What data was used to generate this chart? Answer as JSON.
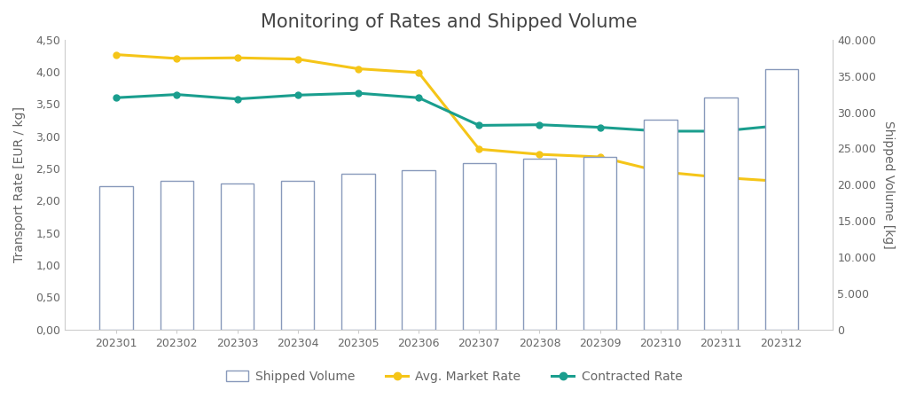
{
  "title": "Monitoring of Rates and Shipped Volume",
  "months": [
    "202301",
    "202302",
    "202303",
    "202304",
    "202305",
    "202306",
    "202307",
    "202308",
    "202309",
    "202310",
    "202311",
    "202312"
  ],
  "avg_market_rate": [
    4.27,
    4.21,
    4.22,
    4.2,
    4.05,
    3.99,
    2.8,
    2.72,
    2.68,
    2.45,
    2.36,
    2.3
  ],
  "contracted_rate": [
    3.6,
    3.65,
    3.58,
    3.64,
    3.67,
    3.6,
    3.17,
    3.18,
    3.14,
    3.08,
    3.08,
    3.17
  ],
  "shipped_volume": [
    19800,
    20500,
    20200,
    20500,
    21500,
    22000,
    23000,
    23600,
    23800,
    29000,
    32000,
    36000
  ],
  "bar_color": "#ffffff",
  "bar_edge_color": "#8899bb",
  "avg_market_color": "#F5C518",
  "contracted_color": "#1a9e8e",
  "ylabel_left": "Transport Rate [EUR / kg]",
  "ylabel_right": "Shipped Volume [kg]",
  "ylim_left": [
    0.0,
    4.5
  ],
  "ylim_right": [
    0,
    40000
  ],
  "yticks_left": [
    0.0,
    0.5,
    1.0,
    1.5,
    2.0,
    2.5,
    3.0,
    3.5,
    4.0,
    4.5
  ],
  "ytick_labels_left": [
    "0,00",
    "0,50",
    "1,00",
    "1,50",
    "2,00",
    "2,50",
    "3,00",
    "3,50",
    "4,00",
    "4,50"
  ],
  "yticks_right": [
    0,
    5000,
    10000,
    15000,
    20000,
    25000,
    30000,
    35000,
    40000
  ],
  "ytick_labels_right": [
    "0",
    "5.000",
    "10.000",
    "15.000",
    "20.000",
    "25.000",
    "30.000",
    "35.000",
    "40.000"
  ],
  "legend_labels": [
    "Shipped Volume",
    "Avg. Market Rate",
    "Contracted Rate"
  ],
  "title_fontsize": 15,
  "axis_label_fontsize": 10,
  "tick_fontsize": 9,
  "legend_fontsize": 10,
  "background_color": "#ffffff",
  "text_color": "#666666",
  "spine_color": "#cccccc"
}
